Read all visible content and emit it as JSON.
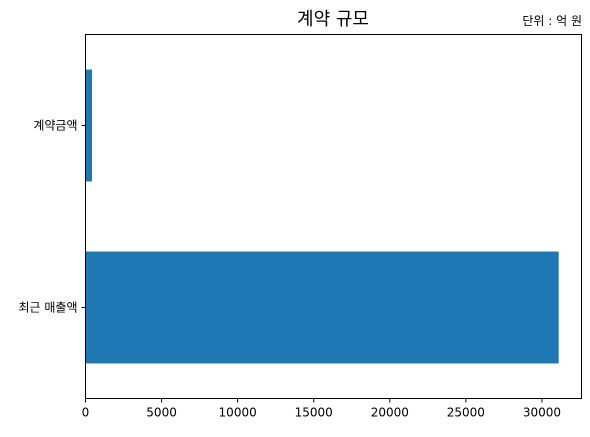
{
  "chart_data": {
    "type": "bar",
    "orientation": "horizontal",
    "title": "계약 규모",
    "unit_note": "단위 : 억 원",
    "categories": [
      "계약금액",
      "최근 매출액"
    ],
    "values": [
      430,
      31100
    ],
    "xlim": [
      0,
      32600
    ],
    "x_ticks": [
      0,
      5000,
      10000,
      15000,
      20000,
      25000,
      30000
    ],
    "xlabel": "",
    "ylabel": "",
    "grid": false,
    "bar_color": "#1f77b4"
  }
}
